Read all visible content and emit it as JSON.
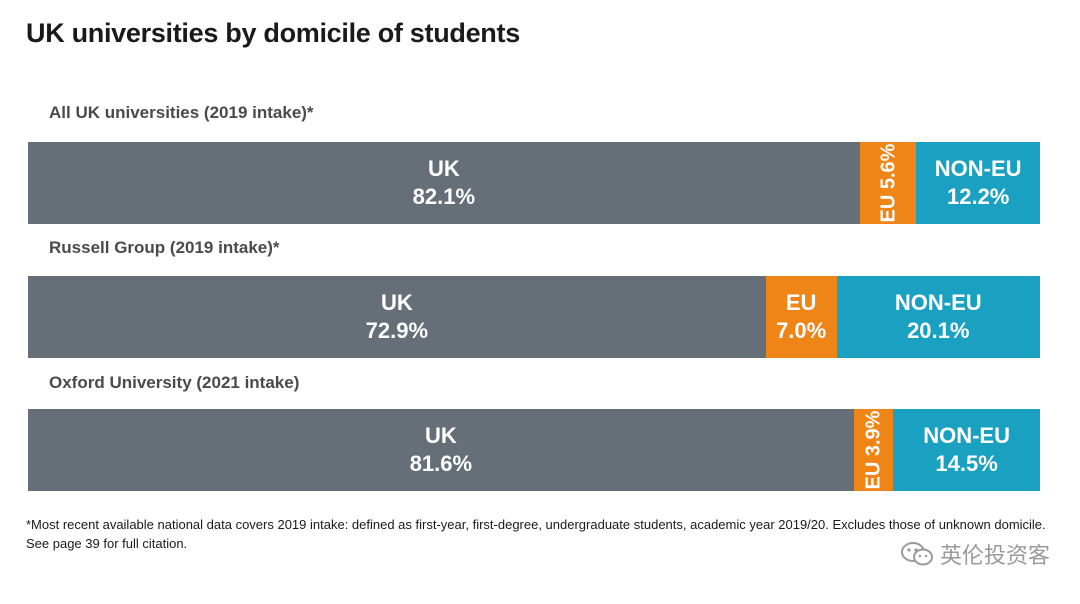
{
  "chart_data": {
    "type": "bar",
    "orientation": "horizontal-stacked-100",
    "title": "UK universities by domicile of students",
    "footnote_lines": [
      "*Most recent available national data covers 2019 intake: defined as first-year, first-degree, undergraduate students, academic year 2019/20. Excludes those of unknown domicile.",
      "See page 39 for full citation."
    ],
    "groups": [
      {
        "label": "All UK universities (2019 intake)*",
        "segments": [
          {
            "name": "UK",
            "value": 82.1,
            "value_label": "82.1%",
            "orientation": "horizontal",
            "color": "#666f78"
          },
          {
            "name": "EU",
            "value": 5.6,
            "value_label": "5.6%",
            "orientation": "vertical",
            "color": "#ef8417"
          },
          {
            "name": "NON-EU",
            "value": 12.2,
            "value_label": "12.2%",
            "orientation": "horizontal",
            "color": "#1aa0c0"
          }
        ]
      },
      {
        "label": "Russell Group (2019 intake)*",
        "segments": [
          {
            "name": "UK",
            "value": 72.9,
            "value_label": "72.9%",
            "orientation": "horizontal",
            "color": "#666f78"
          },
          {
            "name": "EU",
            "value": 7.0,
            "value_label": "7.0%",
            "orientation": "horizontal",
            "color": "#ef8417"
          },
          {
            "name": "NON-EU",
            "value": 20.1,
            "value_label": "20.1%",
            "orientation": "horizontal",
            "color": "#1aa0c0"
          }
        ]
      },
      {
        "label": "Oxford University (2021 intake)",
        "segments": [
          {
            "name": "UK",
            "value": 81.6,
            "value_label": "81.6%",
            "orientation": "horizontal",
            "color": "#666f78"
          },
          {
            "name": "EU",
            "value": 3.9,
            "value_label": "3.9%",
            "orientation": "vertical",
            "color": "#ef8417"
          },
          {
            "name": "NON-EU",
            "value": 14.5,
            "value_label": "14.5%",
            "orientation": "horizontal",
            "color": "#1aa0c0"
          }
        ]
      }
    ]
  },
  "watermark": {
    "text": "英伦投资客",
    "icon": "wechat-icon"
  }
}
